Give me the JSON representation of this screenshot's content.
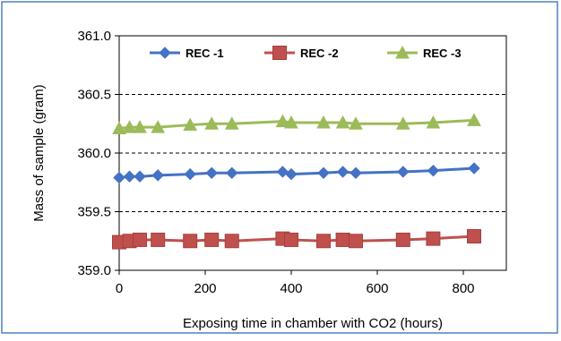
{
  "chart_data": {
    "type": "line",
    "title": "",
    "xlabel": "Exposing time in chamber with CO2 (hours)",
    "ylabel": "Mass of sample (gram)",
    "xlim": [
      0,
      900
    ],
    "ylim": [
      359.0,
      361.0
    ],
    "x_ticks": [
      0,
      200,
      400,
      600,
      800
    ],
    "y_ticks": [
      359.0,
      359.5,
      360.0,
      360.5,
      361.0
    ],
    "x_tick_labels": [
      "0",
      "200",
      "400",
      "600",
      "800"
    ],
    "y_tick_labels": [
      "359.0",
      "359.5",
      "360.0",
      "360.5",
      "361.0"
    ],
    "grid": "horizontal dashed",
    "legend_position": "top",
    "x": [
      0,
      24,
      48,
      90,
      165,
      215,
      262,
      380,
      400,
      475,
      520,
      550,
      660,
      730,
      825
    ],
    "series": [
      {
        "name": "REC -1",
        "color": "#4472C4",
        "marker": "diamond",
        "values": [
          359.79,
          359.8,
          359.8,
          359.81,
          359.82,
          359.83,
          359.83,
          359.84,
          359.82,
          359.83,
          359.84,
          359.83,
          359.84,
          359.85,
          359.87
        ]
      },
      {
        "name": "REC -2",
        "color": "#C0504D",
        "marker": "square",
        "values": [
          359.24,
          359.25,
          359.26,
          359.26,
          359.25,
          359.26,
          359.25,
          359.27,
          359.26,
          359.25,
          359.26,
          359.25,
          359.26,
          359.27,
          359.29
        ]
      },
      {
        "name": "REC -3",
        "color": "#9BBB59",
        "marker": "triangle",
        "values": [
          360.21,
          360.22,
          360.22,
          360.22,
          360.24,
          360.25,
          360.25,
          360.27,
          360.26,
          360.26,
          360.26,
          360.25,
          360.25,
          360.26,
          360.28
        ]
      }
    ]
  }
}
